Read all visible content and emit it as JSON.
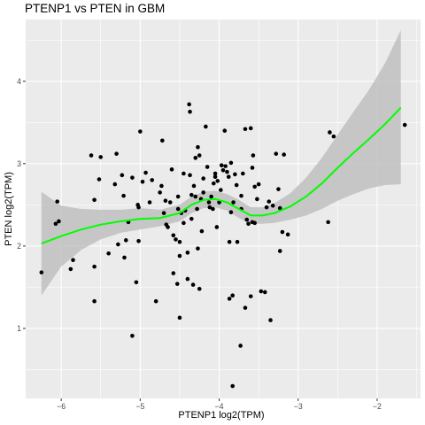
{
  "chart_data": {
    "type": "scatter",
    "title": "PTENP1 vs  PTEN in GBM",
    "xlabel": "PTENP1 log2(TPM)",
    "ylabel": "PTEN log2(TPM)",
    "xlim": [
      -6.45,
      -1.45
    ],
    "ylim": [
      0.15,
      4.75
    ],
    "xticks": [
      -6,
      -5,
      -4,
      -3,
      -2
    ],
    "yticks": [
      1,
      2,
      3,
      4
    ],
    "grid": true,
    "legend": "none",
    "colors": {
      "panel": "#ebebeb",
      "grid": "#ffffff",
      "points": "#000000",
      "smooth": "#00ff00",
      "band": "#bfbfbf"
    },
    "points": [
      [
        -6.25,
        1.68
      ],
      [
        -6.05,
        2.54
      ],
      [
        -6.07,
        2.27
      ],
      [
        -6.03,
        2.3
      ],
      [
        -5.88,
        1.72
      ],
      [
        -5.85,
        1.83
      ],
      [
        -5.62,
        3.1
      ],
      [
        -5.58,
        2.56
      ],
      [
        -5.58,
        1.75
      ],
      [
        -5.58,
        1.33
      ],
      [
        -5.52,
        2.81
      ],
      [
        -5.5,
        3.08
      ],
      [
        -5.4,
        1.91
      ],
      [
        -5.32,
        2.75
      ],
      [
        -5.3,
        3.12
      ],
      [
        -5.28,
        2.02
      ],
      [
        -5.23,
        2.86
      ],
      [
        -5.21,
        2.61
      ],
      [
        -5.2,
        1.86
      ],
      [
        -5.18,
        2.07
      ],
      [
        -5.15,
        2.29
      ],
      [
        -5.1,
        0.91
      ],
      [
        -5.1,
        2.83
      ],
      [
        -5.05,
        1.56
      ],
      [
        -5.03,
        2.5
      ],
      [
        -5.02,
        2.47
      ],
      [
        -5.02,
        2.06
      ],
      [
        -5.0,
        3.39
      ],
      [
        -4.97,
        2.78
      ],
      [
        -4.93,
        2.89
      ],
      [
        -4.88,
        2.53
      ],
      [
        -4.85,
        2.8
      ],
      [
        -4.8,
        1.33
      ],
      [
        -4.75,
        2.65
      ],
      [
        -4.73,
        2.73
      ],
      [
        -4.72,
        3.28
      ],
      [
        -4.7,
        2.4
      ],
      [
        -4.68,
        2.55
      ],
      [
        -4.67,
        2.26
      ],
      [
        -4.65,
        2.23
      ],
      [
        -4.62,
        2.53
      ],
      [
        -4.6,
        2.93
      ],
      [
        -4.58,
        1.67
      ],
      [
        -4.58,
        2.13
      ],
      [
        -4.55,
        2.08
      ],
      [
        -4.53,
        1.54
      ],
      [
        -4.52,
        2.6
      ],
      [
        -4.52,
        2.45
      ],
      [
        -4.5,
        1.13
      ],
      [
        -4.5,
        1.88
      ],
      [
        -4.5,
        2.05
      ],
      [
        -4.48,
        2.4
      ],
      [
        -4.45,
        2.88
      ],
      [
        -4.45,
        2.28
      ],
      [
        -4.43,
        2.43
      ],
      [
        -4.4,
        1.92
      ],
      [
        -4.4,
        1.6
      ],
      [
        -4.38,
        3.72
      ],
      [
        -4.37,
        3.63
      ],
      [
        -4.37,
        2.86
      ],
      [
        -4.35,
        2.62
      ],
      [
        -4.35,
        2.33
      ],
      [
        -4.33,
        1.53
      ],
      [
        -4.32,
        2.73
      ],
      [
        -4.3,
        2.6
      ],
      [
        -4.3,
        3.07
      ],
      [
        -4.28,
        2.45
      ],
      [
        -4.27,
        3.2
      ],
      [
        -4.27,
        1.97
      ],
      [
        -4.25,
        1.48
      ],
      [
        -4.25,
        3.1
      ],
      [
        -4.23,
        2.57
      ],
      [
        -4.22,
        2.18
      ],
      [
        -4.2,
        2.82
      ],
      [
        -4.2,
        2.65
      ],
      [
        -4.17,
        3.45
      ],
      [
        -4.15,
        2.96
      ],
      [
        -4.13,
        2.53
      ],
      [
        -4.12,
        2.47
      ],
      [
        -4.1,
        2.6
      ],
      [
        -4.08,
        2.45
      ],
      [
        -4.07,
        2.76
      ],
      [
        -4.05,
        2.88
      ],
      [
        -4.05,
        2.84
      ],
      [
        -4.03,
        2.23
      ],
      [
        -4.02,
        2.79
      ],
      [
        -4.0,
        2.53
      ],
      [
        -3.98,
        2.68
      ],
      [
        -3.97,
        2.98
      ],
      [
        -3.95,
        2.92
      ],
      [
        -3.93,
        3.4
      ],
      [
        -3.92,
        2.97
      ],
      [
        -3.9,
        2.9
      ],
      [
        -3.88,
        2.84
      ],
      [
        -3.87,
        2.05
      ],
      [
        -3.87,
        1.36
      ],
      [
        -3.85,
        3.01
      ],
      [
        -3.85,
        2.41
      ],
      [
        -3.83,
        0.3
      ],
      [
        -3.83,
        1.4
      ],
      [
        -3.82,
        2.53
      ],
      [
        -3.8,
        2.87
      ],
      [
        -3.78,
        2.74
      ],
      [
        -3.77,
        2.05
      ],
      [
        -3.73,
        0.79
      ],
      [
        -3.72,
        2.61
      ],
      [
        -3.72,
        2.45
      ],
      [
        -3.7,
        2.88
      ],
      [
        -3.67,
        1.25
      ],
      [
        -3.67,
        3.42
      ],
      [
        -3.65,
        2.32
      ],
      [
        -3.63,
        2.27
      ],
      [
        -3.6,
        3.43
      ],
      [
        -3.6,
        1.39
      ],
      [
        -3.58,
        2.95
      ],
      [
        -3.58,
        2.29
      ],
      [
        -3.57,
        3.1
      ],
      [
        -3.55,
        2.28
      ],
      [
        -3.55,
        2.72
      ],
      [
        -3.52,
        2.57
      ],
      [
        -3.5,
        2.75
      ],
      [
        -3.47,
        1.45
      ],
      [
        -3.42,
        1.44
      ],
      [
        -3.4,
        2.47
      ],
      [
        -3.37,
        2.54
      ],
      [
        -3.35,
        1.1
      ],
      [
        -3.32,
        2.49
      ],
      [
        -3.28,
        3.12
      ],
      [
        -3.25,
        2.69
      ],
      [
        -3.23,
        2.46
      ],
      [
        -3.23,
        1.94
      ],
      [
        -3.2,
        2.17
      ],
      [
        -3.18,
        3.11
      ],
      [
        -3.13,
        2.14
      ],
      [
        -2.62,
        2.29
      ],
      [
        -2.6,
        3.38
      ],
      [
        -2.55,
        3.33
      ],
      [
        -1.65,
        3.47
      ]
    ],
    "smooth": {
      "x": [
        -6.25,
        -6.0,
        -5.75,
        -5.5,
        -5.25,
        -5.0,
        -4.75,
        -4.5,
        -4.35,
        -4.2,
        -4.05,
        -3.9,
        -3.75,
        -3.6,
        -3.45,
        -3.3,
        -3.1,
        -2.9,
        -2.7,
        -2.5,
        -2.3,
        -2.1,
        -1.9,
        -1.7
      ],
      "y": [
        2.03,
        2.12,
        2.2,
        2.26,
        2.3,
        2.33,
        2.34,
        2.4,
        2.5,
        2.56,
        2.57,
        2.53,
        2.45,
        2.37,
        2.37,
        2.4,
        2.48,
        2.6,
        2.76,
        2.95,
        3.13,
        3.3,
        3.48,
        3.68
      ],
      "lower": [
        1.4,
        1.75,
        1.95,
        2.08,
        2.16,
        2.2,
        2.24,
        2.3,
        2.4,
        2.46,
        2.47,
        2.43,
        2.34,
        2.27,
        2.27,
        2.28,
        2.32,
        2.37,
        2.45,
        2.55,
        2.63,
        2.7,
        2.74,
        2.75
      ],
      "upper": [
        2.66,
        2.49,
        2.45,
        2.44,
        2.44,
        2.46,
        2.44,
        2.5,
        2.6,
        2.66,
        2.67,
        2.63,
        2.56,
        2.47,
        2.47,
        2.52,
        2.64,
        2.83,
        3.07,
        3.35,
        3.63,
        3.9,
        4.22,
        4.62
      ]
    }
  }
}
